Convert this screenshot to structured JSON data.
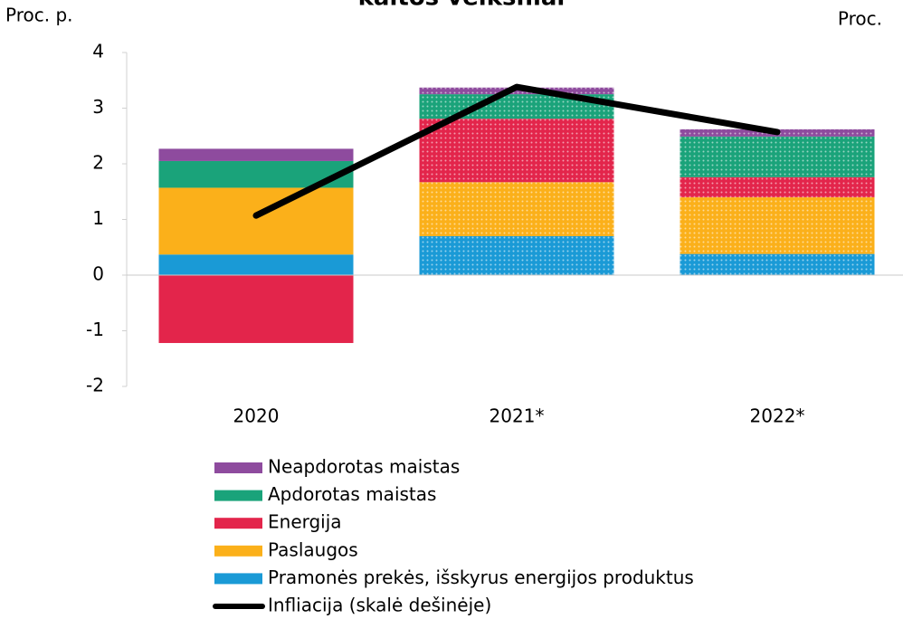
{
  "chart_data": {
    "type": "bar",
    "title": "kaitos veiksniai",
    "y_label": "Proc. p.",
    "y2_label": "Proc.",
    "categories": [
      "2020",
      "2021*",
      "2022*"
    ],
    "projected": [
      false,
      true,
      true
    ],
    "stacked": true,
    "series": [
      {
        "name": "Pramonės prekės, išskyrus energijos produktus",
        "color": "#1a9ad6",
        "values": [
          0.37,
          0.7,
          0.38
        ]
      },
      {
        "name": "Paslaugos",
        "color": "#fbb01a",
        "values": [
          1.2,
          0.97,
          1.02
        ]
      },
      {
        "name": "Energija",
        "color": "#e3254b",
        "values": [
          -1.22,
          1.14,
          0.36
        ]
      },
      {
        "name": "Apdorotas maistas",
        "color": "#1aa37a",
        "values": [
          0.48,
          0.44,
          0.73
        ]
      },
      {
        "name": "Neapdorotas maistas",
        "color": "#8e4b9e",
        "values": [
          0.22,
          0.12,
          0.13
        ]
      },
      {
        "name": "Infliacija (skalė dešinėje)",
        "color": "#000000",
        "type": "line",
        "axis": "y2",
        "values": [
          1.07,
          3.38,
          2.57
        ]
      }
    ],
    "ylim": [
      -2,
      4
    ],
    "yticks": [
      -2,
      -1,
      0,
      1,
      2,
      3,
      4
    ],
    "y2lim": [
      -2,
      4
    ]
  }
}
